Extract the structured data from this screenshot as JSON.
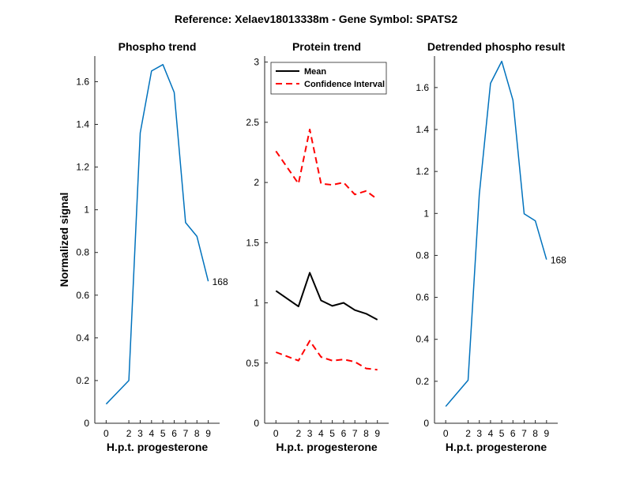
{
  "suptitle": "Reference:  Xelaev18013338m - Gene Symbol:  SPATS2",
  "chart_data": [
    {
      "type": "line",
      "title": "Phospho trend",
      "xlabel": "H.p.t. progesterone",
      "ylabel": "Normalized signal",
      "x": [
        0,
        2,
        3,
        4,
        5,
        6,
        7,
        8,
        9
      ],
      "xticks": [
        "0",
        "2",
        "3",
        "4",
        "5",
        "6",
        "7",
        "8",
        "9"
      ],
      "ylim": [
        0,
        1.72
      ],
      "yticks": [
        0,
        0.2,
        0.4,
        0.6,
        0.8,
        1,
        1.2,
        1.4,
        1.6
      ],
      "ytick_labels": [
        "0",
        "0.2",
        "0.4",
        "0.6",
        "0.8",
        "1",
        "1.2",
        "1.4",
        "1.6"
      ],
      "series": [
        {
          "values": [
            0.09,
            0.2,
            1.36,
            1.65,
            1.68,
            1.55,
            0.94,
            0.875,
            0.665
          ],
          "color": "#0072BD",
          "dash": false
        }
      ],
      "annotation": {
        "text": "168",
        "x": 9,
        "y": 0.665
      }
    },
    {
      "type": "line",
      "title": "Protein trend",
      "xlabel": "H.p.t. progesterone",
      "ylabel": "",
      "x": [
        0,
        2,
        3,
        4,
        5,
        6,
        7,
        8,
        9
      ],
      "xticks": [
        "0",
        "2",
        "3",
        "4",
        "5",
        "6",
        "7",
        "8",
        "9"
      ],
      "ylim": [
        0,
        3.05
      ],
      "yticks": [
        0,
        0.5,
        1,
        1.5,
        2,
        2.5,
        3
      ],
      "ytick_labels": [
        "0",
        "0.5",
        "1",
        "1.5",
        "2",
        "2.5",
        "3"
      ],
      "legend": {
        "location": "top-left"
      },
      "series": [
        {
          "name": "Mean",
          "values": [
            1.1,
            0.97,
            1.25,
            1.02,
            0.975,
            1.0,
            0.94,
            0.91,
            0.86
          ],
          "color": "#000000",
          "dash": false
        },
        {
          "name": "Confidence Interval",
          "values": [
            2.26,
            1.99,
            2.44,
            1.99,
            1.98,
            2.0,
            1.9,
            1.93,
            1.86
          ],
          "color": "#FF0000",
          "dash": true
        },
        {
          "values": [
            0.59,
            0.52,
            0.685,
            0.55,
            0.52,
            0.53,
            0.51,
            0.455,
            0.445
          ],
          "color": "#FF0000",
          "dash": true
        }
      ]
    },
    {
      "type": "line",
      "title": "Detrended phospho result",
      "xlabel": "H.p.t. progesterone",
      "ylabel": "",
      "x": [
        0,
        2,
        3,
        4,
        5,
        6,
        7,
        8,
        9
      ],
      "xticks": [
        "0",
        "2",
        "3",
        "4",
        "5",
        "6",
        "7",
        "8",
        "9"
      ],
      "ylim": [
        0,
        1.75
      ],
      "yticks": [
        0,
        0.2,
        0.4,
        0.6,
        0.8,
        1,
        1.2,
        1.4,
        1.6
      ],
      "ytick_labels": [
        "0",
        "0.2",
        "0.4",
        "0.6",
        "0.8",
        "1",
        "1.2",
        "1.4",
        "1.6"
      ],
      "series": [
        {
          "values": [
            0.08,
            0.205,
            1.09,
            1.62,
            1.725,
            1.54,
            0.998,
            0.965,
            0.78
          ],
          "color": "#0072BD",
          "dash": false
        }
      ],
      "annotation": {
        "text": "168",
        "x": 9,
        "y": 0.78
      }
    }
  ]
}
